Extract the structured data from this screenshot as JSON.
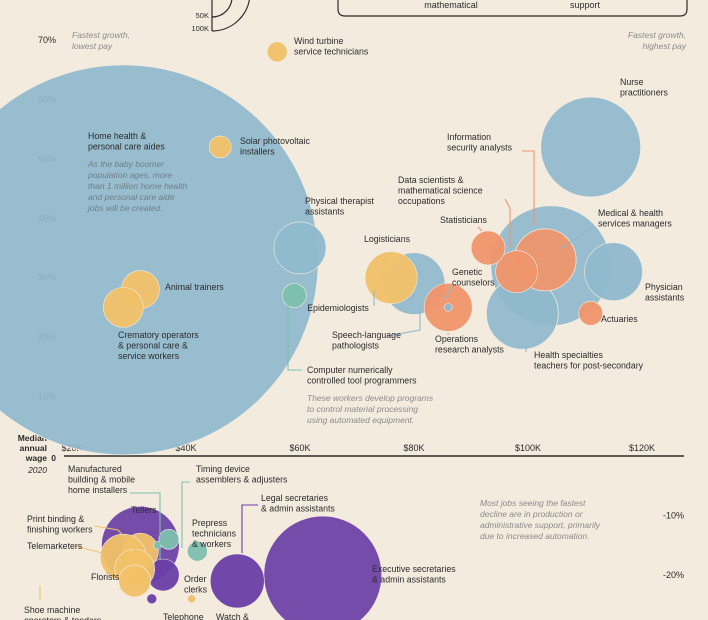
{
  "colors": {
    "background": "#f4ebdf",
    "blue": "#8fb9cc",
    "orange": "#f0956a",
    "yellow": "#f1c168",
    "teal": "#7cc0ad",
    "purple": "#6a3ea6",
    "text": "#2b2b2b",
    "muted": "#8a8a8a"
  },
  "header": {
    "size_legend_labels": [
      "50K",
      "100K"
    ],
    "legend_box_texts": [
      "mathematical",
      "support"
    ]
  },
  "corner_notes": {
    "left": [
      "Fastest growth,",
      "lowest pay"
    ],
    "right": [
      "Fastest growth,",
      "highest pay"
    ]
  },
  "notes": {
    "home_health": [
      "As the baby boomer",
      "population ages, more",
      "than 1 million home health",
      "and personal care aide",
      "jobs will be created."
    ],
    "cnc": [
      "These workers develop programs",
      "to control material processing",
      "using automated equipment."
    ],
    "decline": [
      "Most jobs seeing the fastest",
      "decline are in production or",
      "administrative support, primarily",
      "due to increased automation."
    ]
  },
  "axis": {
    "title_lines": [
      "Median",
      "annual",
      "wage",
      "2020"
    ],
    "zero_label": "0"
  },
  "chart_data": {
    "type": "scatter",
    "encoding": "bubble; x = median annual wage 2020 (USD), y = projected employment change (%), bubble area = jobs added/lost",
    "x_ticks": [
      "$20K",
      "$40K",
      "$60K",
      "$80K",
      "$100K",
      "$120K"
    ],
    "x_tick_values": [
      20000,
      40000,
      60000,
      80000,
      100000,
      120000
    ],
    "y_ticks_top": [
      "10%",
      "20%",
      "30%",
      "40%",
      "50%",
      "60%",
      "70%"
    ],
    "y_tick_top_values": [
      10,
      20,
      30,
      40,
      50,
      60,
      70
    ],
    "y_ticks_bottom": [
      "-10%",
      "-20%"
    ],
    "y_tick_bottom_values": [
      -10,
      -20
    ],
    "xlim": [
      14000,
      136000
    ],
    "ylim_top": [
      4,
      73
    ],
    "ylim_bottom": [
      -27,
      -3
    ],
    "growth_points": [
      {
        "label": [
          "Home health &",
          "personal care aides"
        ],
        "x": 29000,
        "y": 33,
        "color": "blue"
      },
      {
        "label": [
          "Wind turbine",
          "service technicians"
        ],
        "x": 56000,
        "y": 68,
        "color": "yellow"
      },
      {
        "label": [
          "Solar photovoltaic",
          "installers"
        ],
        "x": 46000,
        "y": 52,
        "color": "yellow"
      },
      {
        "label": [
          "Animal trainers"
        ],
        "x": 32000,
        "y": 28,
        "color": "yellow"
      },
      {
        "label": [
          "Crematory operators",
          "& personal care &",
          "service workers"
        ],
        "x": 29000,
        "y": 25,
        "color": "yellow"
      },
      {
        "label": [
          "Physical therapist",
          "assistants"
        ],
        "x": 60000,
        "y": 35,
        "color": "blue"
      },
      {
        "label": [
          "Computer numerically",
          "controlled tool programmers"
        ],
        "x": 59000,
        "y": 27,
        "color": "teal"
      },
      {
        "label": [
          "Logisticians"
        ],
        "x": 76000,
        "y": 30,
        "color": "yellow"
      },
      {
        "label": [
          "Epidemiologists"
        ],
        "x": 75000,
        "y": 30,
        "color": "blue"
      },
      {
        "label": [
          "Speech-language",
          "pathologists"
        ],
        "x": 80000,
        "y": 29,
        "color": "blue"
      },
      {
        "label": [
          "Operations",
          "research analysts"
        ],
        "x": 86000,
        "y": 25,
        "color": "orange"
      },
      {
        "label": [
          "Genetic",
          "counselors"
        ],
        "x": 86000,
        "y": 25,
        "color": "blue"
      },
      {
        "label": [
          "Information",
          "security analysts"
        ],
        "x": 103000,
        "y": 33,
        "color": "orange"
      },
      {
        "label": [
          "Data scientists &",
          "mathematical science",
          "occupations"
        ],
        "x": 98000,
        "y": 31,
        "color": "orange"
      },
      {
        "label": [
          "Statisticians"
        ],
        "x": 93000,
        "y": 35,
        "color": "orange"
      },
      {
        "label": [
          "Nurse",
          "practitioners"
        ],
        "x": 111000,
        "y": 52,
        "color": "blue"
      },
      {
        "label": [
          "Medical & health",
          "services managers"
        ],
        "x": 104000,
        "y": 32,
        "color": "blue"
      },
      {
        "label": [
          "Physician",
          "assistants"
        ],
        "x": 115000,
        "y": 31,
        "color": "blue"
      },
      {
        "label": [
          "Actuaries"
        ],
        "x": 111000,
        "y": 24,
        "color": "orange"
      },
      {
        "label": [
          "Health specialties",
          "teachers for post-secondary"
        ],
        "x": 99000,
        "y": 24,
        "color": "blue"
      }
    ],
    "decline_points": [
      {
        "label": [
          "Manufactured",
          "building & mobile",
          "home installers"
        ],
        "x": 35000,
        "y": -15,
        "color": "teal"
      },
      {
        "label": [
          "Timing device",
          "assemblers & adjusters"
        ],
        "x": 37000,
        "y": -14,
        "color": "teal"
      },
      {
        "label": [
          "Tellers"
        ],
        "x": 32000,
        "y": -15,
        "color": "purple"
      },
      {
        "label": [
          "Print binding &",
          "finishing workers"
        ],
        "x": 32000,
        "y": -16,
        "color": "yellow"
      },
      {
        "label": [
          "Telemarketers"
        ],
        "x": 29000,
        "y": -17,
        "color": "yellow"
      },
      {
        "label": [
          "Prepress",
          "technicians",
          "& workers"
        ],
        "x": 42000,
        "y": -16,
        "color": "teal"
      },
      {
        "label": [
          "Legal secretaries",
          "& admin assistants"
        ],
        "x": 49000,
        "y": -21,
        "color": "purple"
      },
      {
        "label": [
          "Florists"
        ],
        "x": 31000,
        "y": -19,
        "color": "yellow"
      },
      {
        "label": [
          "Order",
          "clerks"
        ],
        "x": 36000,
        "y": -20,
        "color": "purple"
      },
      {
        "label": [
          "Executive secretaries",
          "& admin assistants"
        ],
        "x": 64000,
        "y": -20,
        "color": "purple"
      },
      {
        "label": [
          "Shoe machine",
          "operators & tenders"
        ],
        "x": 31000,
        "y": -21,
        "color": "yellow"
      },
      {
        "label": [
          "Telephone"
        ],
        "x": 34000,
        "y": -24,
        "color": "purple"
      },
      {
        "label": [
          "Watch &"
        ],
        "x": 41000,
        "y": -24,
        "color": "yellow"
      }
    ]
  }
}
